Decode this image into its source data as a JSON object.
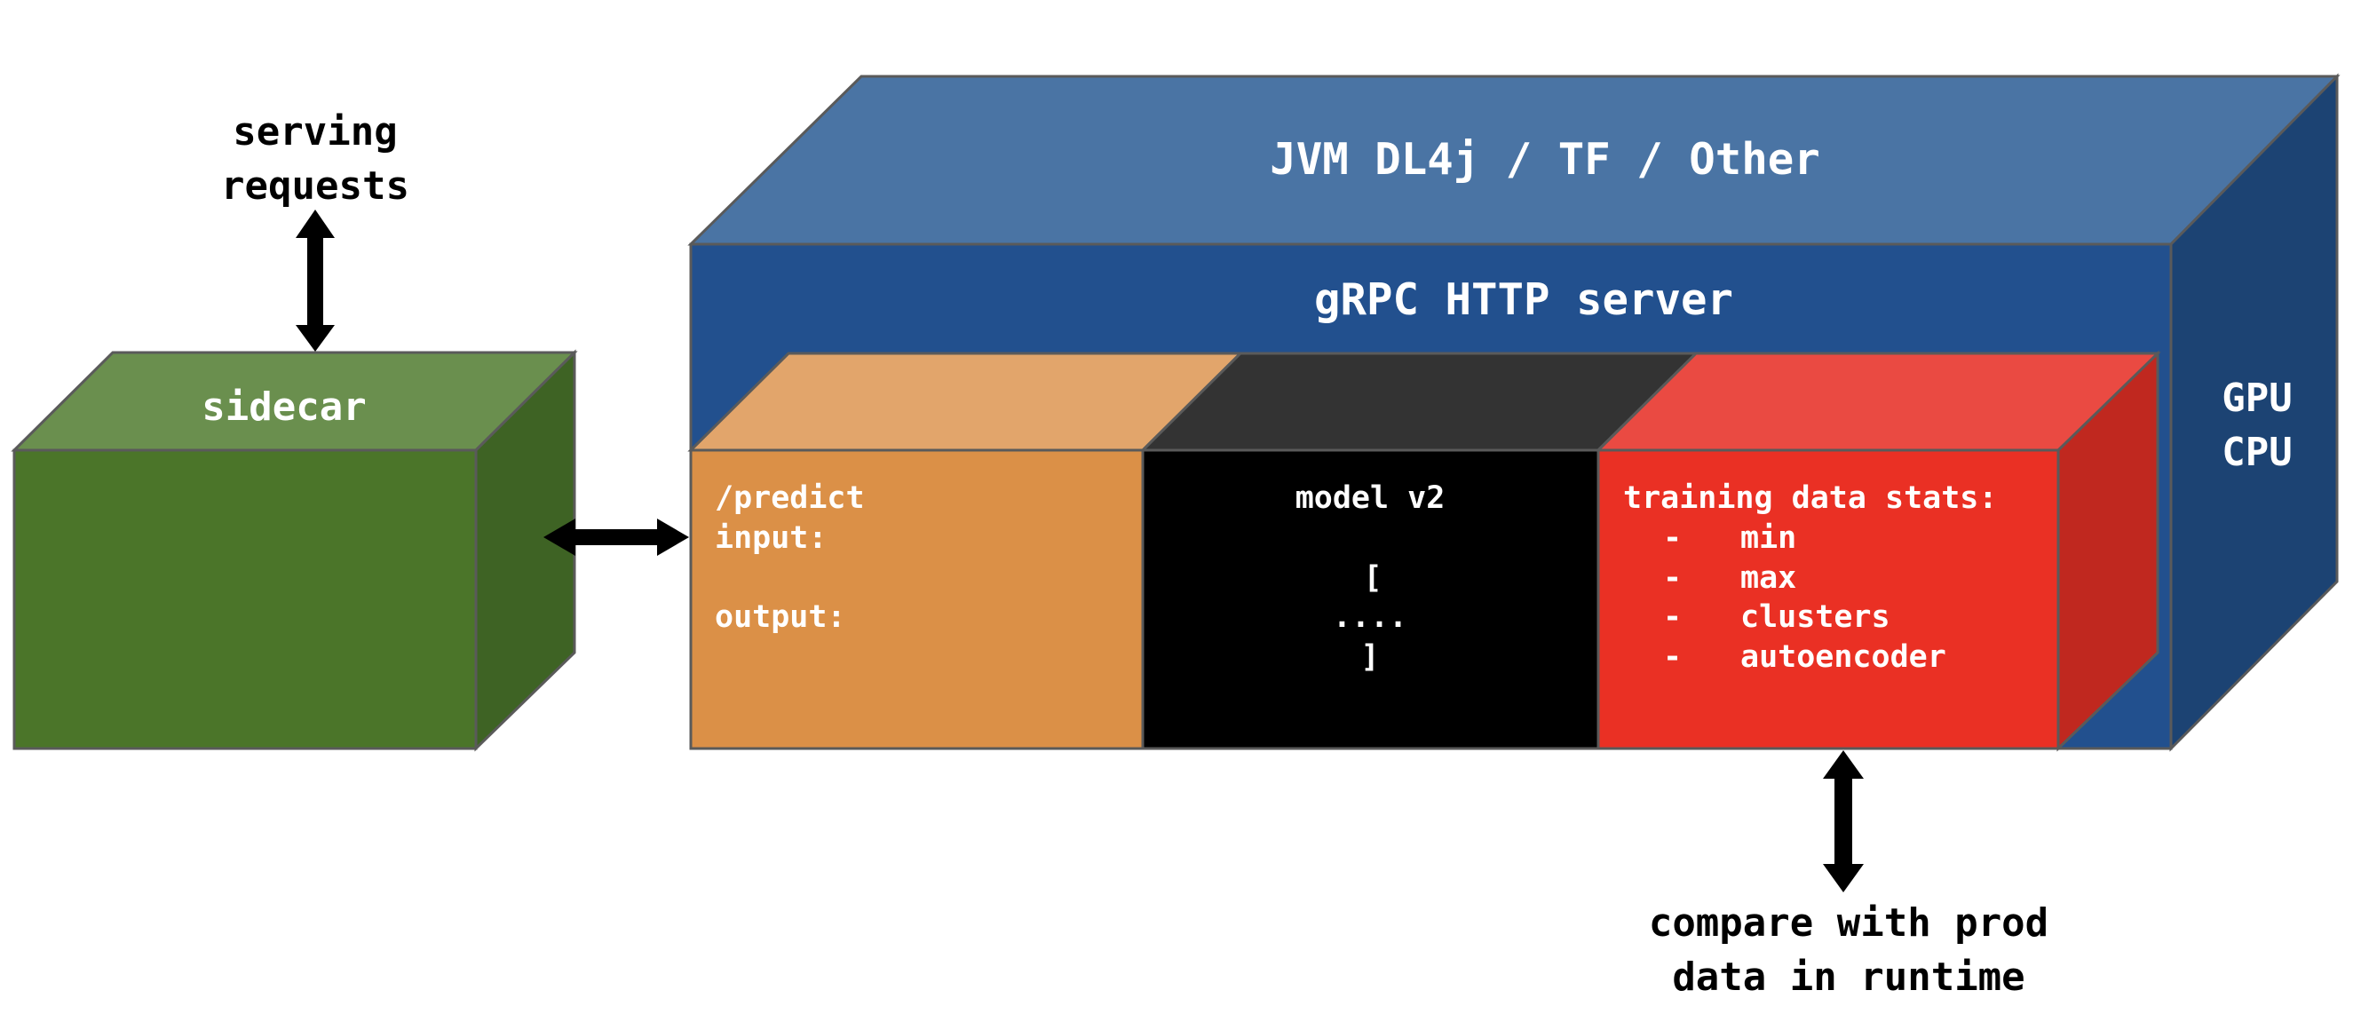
{
  "caption_top": {
    "line1": "serving",
    "line2": "requests"
  },
  "caption_bottom": {
    "line1": "compare with prod",
    "line2": "data in runtime"
  },
  "sidecar": {
    "label": "sidecar",
    "colors": {
      "top": "#6a8f4e",
      "front": "#4b7529",
      "side": "#3e6324"
    }
  },
  "runtime": {
    "label": "JVM DL4j / TF / Other",
    "colors": {
      "top": "#4a74a4",
      "front": "#22508e",
      "side": "#1c4373"
    }
  },
  "server": {
    "label": "gRPC HTTP server"
  },
  "hardware": {
    "line1": "GPU",
    "line2": "CPU"
  },
  "predict_block": {
    "line1": "/predict",
    "line2": "input:",
    "line3": "output:",
    "colors": {
      "top": "#e2a56b",
      "front": "#db9047"
    }
  },
  "model_block": {
    "line1": "model v2",
    "line2": "[",
    "line3": "....",
    "line4": "]",
    "colors": {
      "top": "#333333",
      "front": "#000000"
    }
  },
  "stats_block": {
    "title": "training data stats:",
    "items": [
      {
        "bullet": "-",
        "text": "min"
      },
      {
        "bullet": "-",
        "text": "max"
      },
      {
        "bullet": "-",
        "text": "clusters"
      },
      {
        "bullet": "-",
        "text": "autoencoder"
      }
    ],
    "colors": {
      "top": "#ea4a42",
      "front": "#ea3024",
      "side": "#c0281f"
    }
  }
}
